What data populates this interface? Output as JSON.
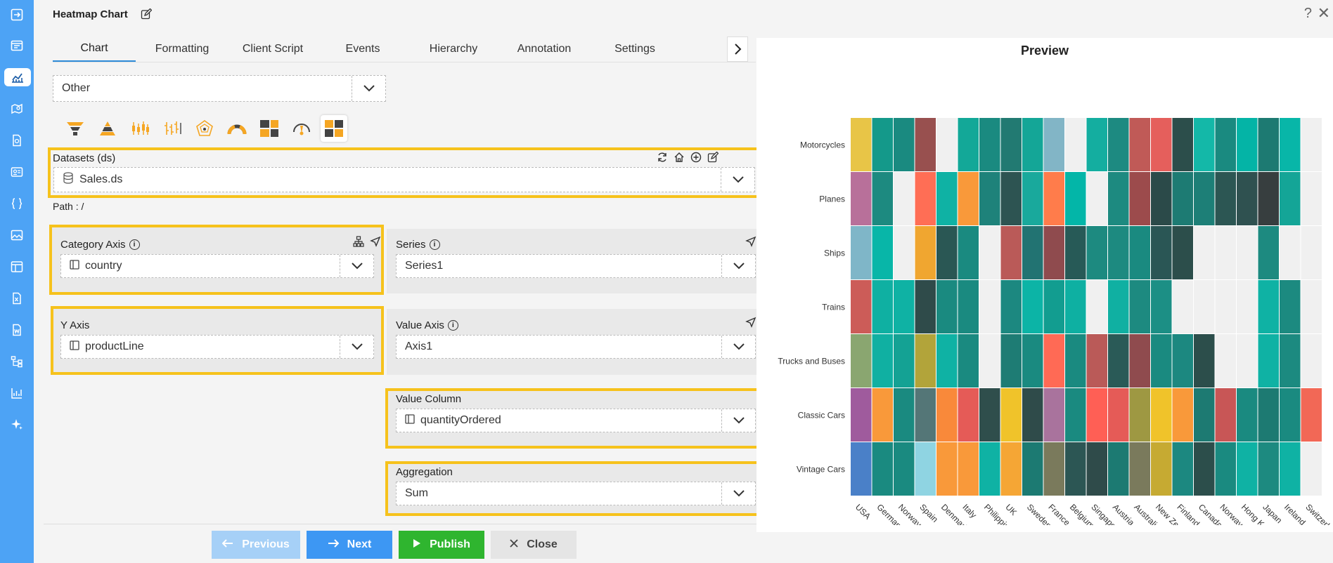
{
  "window": {
    "title": "Heatmap Chart"
  },
  "tabs": [
    {
      "label": "Chart",
      "active": true
    },
    {
      "label": "Formatting"
    },
    {
      "label": "Client Script"
    },
    {
      "label": "Events"
    },
    {
      "label": "Hierarchy"
    },
    {
      "label": "Annotation"
    },
    {
      "label": "Settings"
    }
  ],
  "chart_type_select": {
    "value": "Other"
  },
  "datasets": {
    "label": "Datasets (ds)",
    "value": "Sales.ds",
    "path": "Path : /"
  },
  "category_axis": {
    "label": "Category Axis",
    "value": "country"
  },
  "series": {
    "label": "Series",
    "value": "Series1"
  },
  "y_axis": {
    "label": "Y Axis",
    "value": "productLine"
  },
  "value_axis": {
    "label": "Value Axis",
    "value": "Axis1"
  },
  "value_column": {
    "label": "Value Column",
    "value": "quantityOrdered"
  },
  "aggregation": {
    "label": "Aggregation",
    "value": "Sum"
  },
  "footer": {
    "previous": "Previous",
    "next": "Next",
    "publish": "Publish",
    "close": "Close"
  },
  "preview": {
    "title": "Preview"
  },
  "colors": {
    "accent": "#4da3f5",
    "highlight": "#f6c21c",
    "publish": "#2fb52f",
    "tab_active": "#2e8bd8"
  },
  "chart_data": {
    "type": "heatmap",
    "title": "",
    "x": [
      "USA",
      "Germany",
      "Norway",
      "Spain",
      "Denmark",
      "Italy",
      "Philippines",
      "UK",
      "Sweden",
      "France",
      "Belgium",
      "Singapore",
      "Austria",
      "Australia",
      "New Zealand",
      "Finland",
      "Canada",
      "Norway",
      "Hong Kong",
      "Japan",
      "Ireland",
      "Switzerland"
    ],
    "y": [
      "Motorcycles",
      "Planes",
      "Ships",
      "Trains",
      "Trucks and Buses",
      "Classic Cars",
      "Vintage Cars"
    ],
    "cell_colors": [
      [
        "#e8c547",
        "#14998a",
        "#1a8a80",
        "#98504f",
        "",
        "#13a898",
        "#1a8a80",
        "#227a72",
        "#14a697",
        "#82b5c6",
        "",
        "#14aea0",
        "#1d8a81",
        "#c05a57",
        "#e55f5c",
        "#2c4e4b",
        "#14b8a8",
        "#1a8a80",
        "#04b4a6",
        "#1d7a72",
        "#08b6a8",
        ""
      ],
      [
        "#b8709a",
        "#1d8a80",
        "",
        "#ff6e55",
        "#0fb2a4",
        "#f9993a",
        "#1e827a",
        "#2d5452",
        "#19a99c",
        "#ff7c4b",
        "#03b6a8",
        "",
        "#1d8a80",
        "#9c4b4c",
        "#2b4a49",
        "#1d7b73",
        "#1d7f77",
        "#2c5653",
        "#2f5150",
        "#373e3f",
        "#14a597",
        ""
      ],
      [
        "#7fb6c8",
        "#08b6a8",
        "",
        "#f0a630",
        "#2a5754",
        "#1a8a80",
        "",
        "#ba5a58",
        "#227372",
        "#8f4b4e",
        "#275a57",
        "#1d8a80",
        "#1d8a80",
        "#1a8a80",
        "#2a5655",
        "#2c4e4b",
        "",
        "",
        "",
        "#1d8a80",
        "",
        ""
      ],
      [
        "#cc5c58",
        "#0fb0a2",
        "#0fb2a4",
        "#2f4b4a",
        "#1a8a80",
        "#1a8a80",
        "",
        "#1c8880",
        "#0cb4a6",
        "#129d90",
        "#0eb0a2",
        "",
        "#10b0a2",
        "#1d8a80",
        "#1c8f85",
        "",
        "",
        "",
        "",
        "#0fb2a4",
        "#1c8a80",
        ""
      ],
      [
        "#8aa670",
        "#10b0a2",
        "#14a294",
        "#b2a43a",
        "#0fb2a4",
        "#1a8a80",
        "",
        "#1e7c74",
        "#1a8a80",
        "#ff6a55",
        "#1a8a80",
        "#ba5a58",
        "#2a5a57",
        "#8f4b4e",
        "#1a8a80",
        "#1c8880",
        "#2c4e4b",
        "",
        "",
        "#0fb2a4",
        "#1c8a80",
        ""
      ],
      [
        "#9f5b9d",
        "#f9993a",
        "#1a8a80",
        "#547677",
        "#f9893a",
        "#e55b57",
        "#2f4e4c",
        "#f0c32a",
        "#2f4b4a",
        "#a9739d",
        "#1a8a80",
        "#ff5f55",
        "#e55b57",
        "#9e9842",
        "#f0c32a",
        "#f9993a",
        "#1d7a72",
        "#c85656",
        "#1a8a80",
        "#1d7a72",
        "#1a8a80",
        "#f26856"
      ],
      [
        "#4a80c8",
        "#1a8a80",
        "#1a8a80",
        "#8fd4e2",
        "#f9993a",
        "#f9993a",
        "#0fb2a4",
        "#f5a635",
        "#1c7a72",
        "#7a7a5c",
        "#2c5654",
        "#2f4b4a",
        "#1c7a72",
        "#7a7a5c",
        "#c6aa32",
        "#1c8880",
        "#2c4e4b",
        "#1a8a80",
        "#0fb2a4",
        "#1d8a80",
        "#0fb2a4",
        ""
      ]
    ]
  }
}
